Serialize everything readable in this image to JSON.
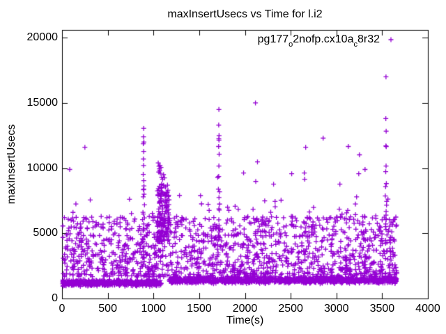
{
  "chart_data": {
    "type": "scatter",
    "title": "maxInsertUsecs vs Time for l.i2",
    "xlabel": "Time(s)",
    "ylabel": "maxInsertUsecs",
    "xlim": [
      0,
      4000
    ],
    "ylim": [
      0,
      20600
    ],
    "xticks": [
      0,
      500,
      1000,
      1500,
      2000,
      2500,
      3000,
      3500,
      4000
    ],
    "yticks": [
      0,
      5000,
      10000,
      15000,
      20000
    ],
    "grid": false,
    "tick_style": "inward-mirrored",
    "border_color": "#000000",
    "background_color": "#ffffff",
    "legend": {
      "position": "top-right-inside",
      "marker": "+",
      "label_plain": "pg177_o2nofp.cx10a_c8r32",
      "label_parts": [
        {
          "text": "pg177",
          "sub": false
        },
        {
          "text": "o",
          "sub": true
        },
        {
          "text": "2nofp.cx10a",
          "sub": false
        },
        {
          "text": "c",
          "sub": true
        },
        {
          "text": "8r32",
          "sub": false
        }
      ]
    },
    "series": [
      {
        "name": "pg177_o2nofp.cx10a_c8r32",
        "color": "#9400d3",
        "marker": "plus",
        "marker_size_px": 7,
        "time_extent": [
          0,
          3660
        ],
        "outlier_points": [
          [
            84,
            9900
          ],
          [
            250,
            11600
          ],
          [
            893,
            13050
          ],
          [
            891,
            12400
          ],
          [
            895,
            12000
          ],
          [
            889,
            11870
          ],
          [
            893,
            11280
          ],
          [
            890,
            10700
          ],
          [
            892,
            10200
          ],
          [
            888,
            9520
          ],
          [
            894,
            9040
          ],
          [
            1052,
            10400
          ],
          [
            1060,
            10150
          ],
          [
            1068,
            9800
          ],
          [
            1075,
            9600
          ],
          [
            1082,
            10050
          ],
          [
            1090,
            9300
          ],
          [
            1100,
            9150
          ],
          [
            1110,
            9500
          ],
          [
            1120,
            9250
          ],
          [
            1065,
            9950
          ],
          [
            1072,
            10200
          ],
          [
            1058,
            9700
          ],
          [
            1715,
            14500
          ],
          [
            1713,
            13300
          ],
          [
            1717,
            12500
          ],
          [
            1714,
            12250
          ],
          [
            1716,
            12150
          ],
          [
            1712,
            11660
          ],
          [
            1718,
            11070
          ],
          [
            1715,
            10160
          ],
          [
            1713,
            9360
          ],
          [
            1702,
            9300
          ],
          [
            1985,
            9630
          ],
          [
            2115,
            15000
          ],
          [
            2118,
            8980
          ],
          [
            2137,
            10480
          ],
          [
            2313,
            8770
          ],
          [
            2511,
            9570
          ],
          [
            2649,
            9630
          ],
          [
            2653,
            9150
          ],
          [
            2664,
            11600
          ],
          [
            2855,
            12300
          ],
          [
            3038,
            8770
          ],
          [
            3130,
            11660
          ],
          [
            3244,
            9570
          ],
          [
            3252,
            11020
          ],
          [
            3313,
            9900
          ],
          [
            3542,
            17000
          ],
          [
            3540,
            13800
          ],
          [
            3544,
            12835
          ],
          [
            3541,
            11700
          ],
          [
            3545,
            11650
          ],
          [
            3543,
            10160
          ],
          [
            3539,
            9730
          ],
          [
            3546,
            8820
          ]
        ],
        "dense_regions": [
          {
            "name": "floor-band-left",
            "t_range": [
              5,
              1085
            ],
            "dist": "triangular",
            "v_center": 1200,
            "v_spread": 280,
            "count": 500,
            "seed": 11
          },
          {
            "name": "floor-band-right",
            "t_range": [
              1165,
              3660
            ],
            "dist": "triangular",
            "v_center": 1400,
            "v_spread": 270,
            "count": 1000,
            "seed": 22
          },
          {
            "name": "main-cloud",
            "t_range": [
              5,
              3660
            ],
            "dist": "power",
            "power": 1.35,
            "v_range": [
              1650,
              6300
            ],
            "count": 1400,
            "seed": 33
          },
          {
            "name": "upper-sparse",
            "t_range": [
              5,
              3660
            ],
            "dist": "uniform",
            "v_range": [
              6200,
              7900
            ],
            "count": 38,
            "seed": 44
          },
          {
            "name": "checkpoint-cluster",
            "t_range": [
              1038,
              1172
            ],
            "dist": "power",
            "power": 1.2,
            "v_range": [
              4300,
              8800
            ],
            "count": 150,
            "seed": 55
          },
          {
            "name": "spike-890",
            "t_range": [
              884,
              902
            ],
            "dist": "uniform",
            "v_range": [
              4500,
              9000
            ],
            "count": 16,
            "seed": 66
          },
          {
            "name": "spike-1717",
            "t_range": [
              1708,
              1724
            ],
            "dist": "uniform",
            "v_range": [
              4500,
              9200
            ],
            "count": 10,
            "seed": 77
          },
          {
            "name": "spike-3542",
            "t_range": [
              3536,
              3552
            ],
            "dist": "uniform",
            "v_range": [
              4500,
              8800
            ],
            "count": 10,
            "seed": 88
          }
        ]
      }
    ]
  }
}
